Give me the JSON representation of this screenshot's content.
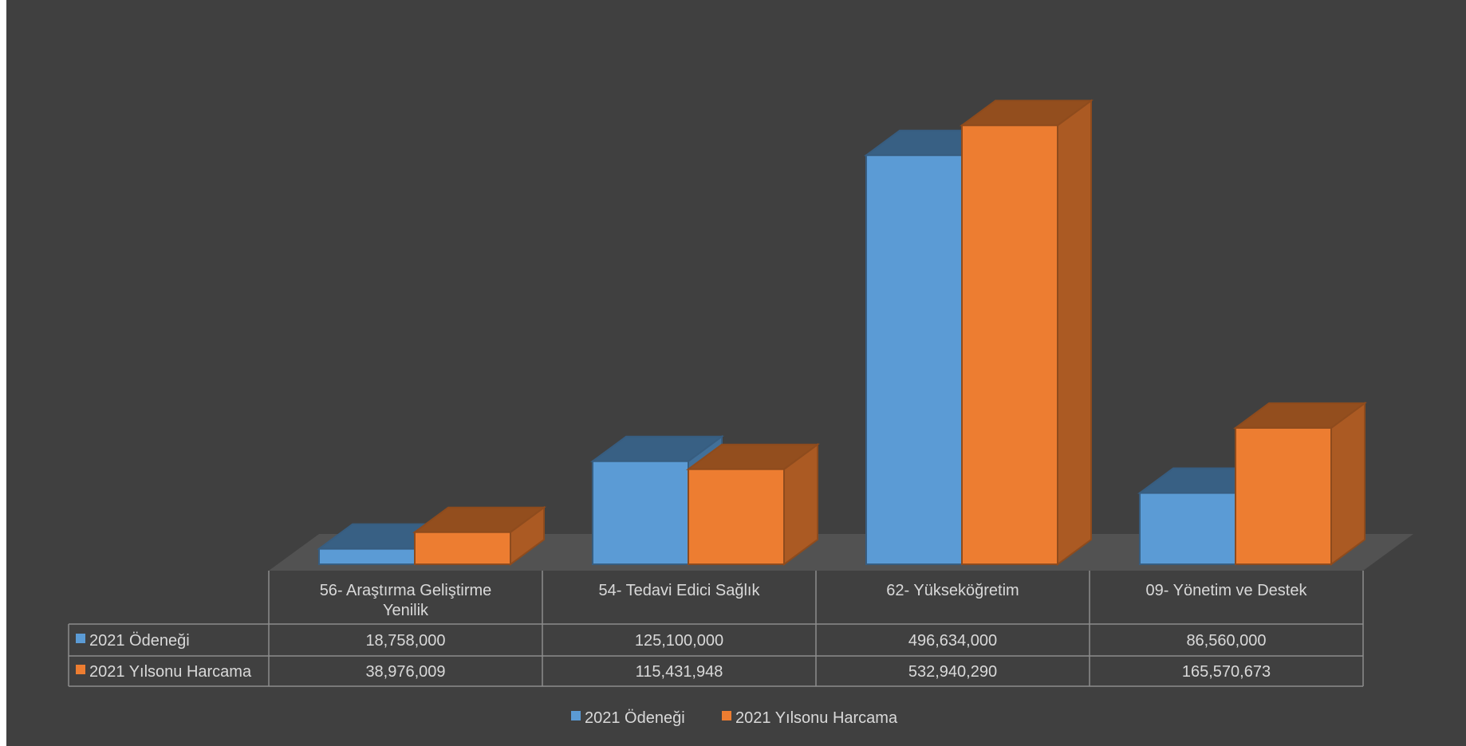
{
  "chart_data": {
    "type": "bar",
    "style": "3d-clustered-column-with-data-table",
    "categories": [
      "56- Araştırma Geliştirme Yenilik",
      "54- Tedavi Edici Sağlık",
      "62- Yükseköğretim",
      "09- Yönetim ve Destek"
    ],
    "series": [
      {
        "name": "2021 Ödeneği",
        "color": "#5b9bd5",
        "values": [
          18758000,
          125100000,
          496634000,
          86560000
        ],
        "labels": [
          "18,758,000",
          "125,100,000",
          "496,634,000",
          "86,560,000"
        ]
      },
      {
        "name": "2021 Yılsonu Harcama",
        "color": "#ed7d31",
        "values": [
          38976009,
          115431948,
          532940290,
          165570673
        ],
        "labels": [
          "38,976,009",
          "115,431,948",
          "532,940,290",
          "165,570,673"
        ]
      }
    ],
    "ylim": [
      0,
      600000000
    ],
    "legend_position": "bottom",
    "grid": false,
    "title": "",
    "xlabel": "",
    "ylabel": ""
  }
}
